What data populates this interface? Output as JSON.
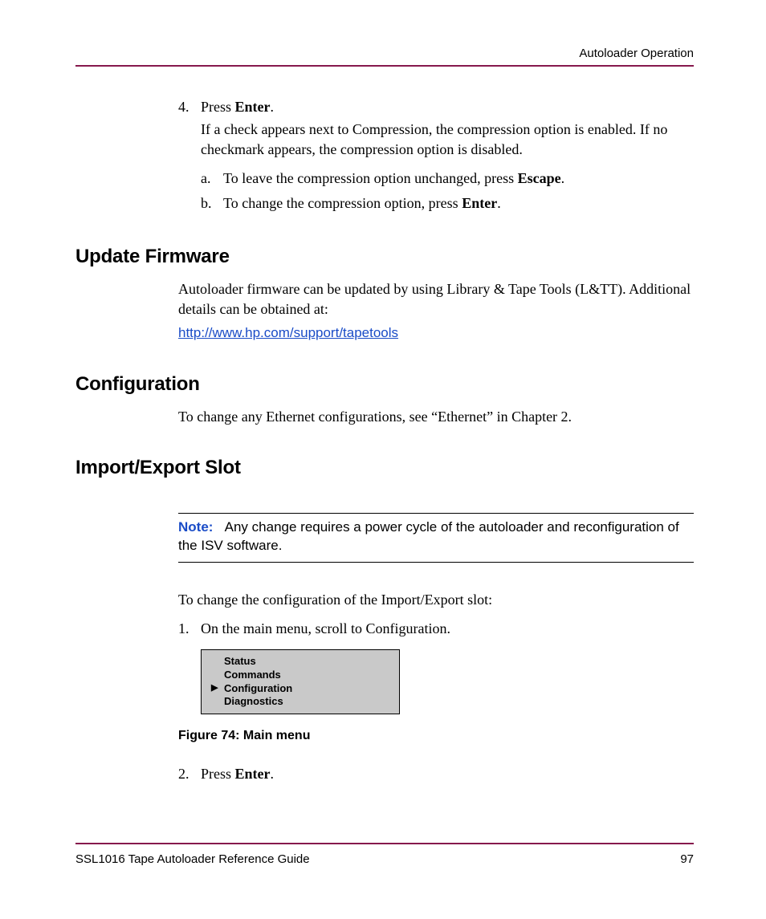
{
  "colors": {
    "rule": "#86194d",
    "link": "#1a4cc7",
    "note_label": "#1a4cc7",
    "lcd_bg": "#c9c9c9",
    "text": "#000000",
    "background": "#ffffff"
  },
  "fonts": {
    "heading_family": "Arial, Helvetica, sans-serif",
    "body_family": "Times New Roman, Times, serif",
    "heading_size_pt": 18,
    "body_size_pt": 13.5
  },
  "header": {
    "section_title": "Autoloader Operation"
  },
  "step4": {
    "number": "4.",
    "text_before_bold": "Press ",
    "bold": "Enter",
    "text_after_bold": ".",
    "detail": "If a check appears next to Compression, the compression option is enabled. If no checkmark appears, the compression option is disabled.",
    "sub_a": {
      "lett": "a.",
      "before": "To leave the compression option unchanged, press ",
      "bold": "Escape",
      "after": "."
    },
    "sub_b": {
      "lett": "b.",
      "before": "To change the compression option, press ",
      "bold": "Enter",
      "after": "."
    }
  },
  "update_firmware": {
    "heading": "Update Firmware",
    "para": "Autoloader firmware can be updated by using Library & Tape Tools (L&TT). Additional details can be obtained at:",
    "link_text": "http://www.hp.com/support/tapetools",
    "link_href": "http://www.hp.com/support/tapetools"
  },
  "configuration": {
    "heading": "Configuration",
    "para": "To change any Ethernet configurations, see “Ethernet” in Chapter 2."
  },
  "import_export": {
    "heading": "Import/Export Slot",
    "note_label": "Note:",
    "note_body": "Any change requires a power cycle of the autoloader and reconfiguration of the ISV software.",
    "intro": "To change the configuration of the Import/Export slot:",
    "step1": {
      "num": "1.",
      "text": "On the main menu, scroll to Configuration."
    },
    "lcd": {
      "rows": [
        "Status",
        "Commands",
        "Configuration",
        "Diagnostics"
      ],
      "cursor_index": 2,
      "cursor_glyph": "▶"
    },
    "figure_caption": "Figure 74:  Main menu",
    "step2": {
      "num": "2.",
      "before": "Press ",
      "bold": "Enter",
      "after": "."
    }
  },
  "footer": {
    "doc_title": "SSL1016 Tape Autoloader Reference Guide",
    "page_number": "97"
  }
}
